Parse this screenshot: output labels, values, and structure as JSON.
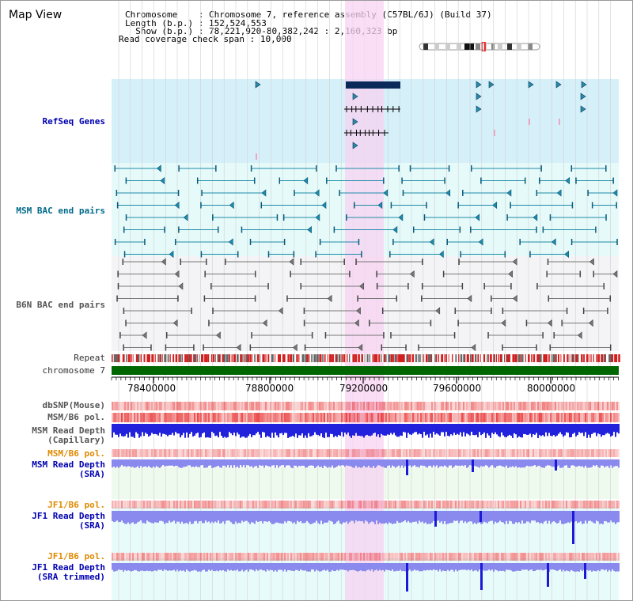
{
  "app": {
    "title": "Map View"
  },
  "header": {
    "chromosome_label": "Chromosome    ",
    "chromosome_value": "Chromosome 7, reference assembly (C57BL/6J) (Build 37)",
    "length_label": "Length (b.p.)",
    "length_value": "152,524,553",
    "show_label": "  Show (b.p.)",
    "show_value": "78,221,920-80,382,242 : 2,160,323 bp",
    "span_label": "Read coverage check span",
    "span_value": "10,000"
  },
  "tracks": {
    "refseq": "RefSeq Genes",
    "msm_bac": "MSM BAC end pairs",
    "b6n_bac": "B6N BAC end pairs",
    "repeat": "Repeat",
    "chromosome": "chromosome 7",
    "dbsnp": "dbSNP(Mouse)",
    "msm_b6_pol_1": "MSM/B6 pol.",
    "msm_depth_cap_1": "MSM Read Depth",
    "msm_depth_cap_2": "(Capillary)",
    "msm_b6_pol_2": "MSM/B6 pol.",
    "msm_depth_sra_1": "MSM Read Depth",
    "msm_depth_sra_2": "(SRA)",
    "jf1_b6_pol_1": "JF1/B6 pol.",
    "jf1_depth_sra_1": "JF1 Read Depth",
    "jf1_depth_sra_2": "(SRA)",
    "jf1_b6_pol_2": "JF1/B6 pol.",
    "jf1_depth_trim_1": "JF1 Read Depth",
    "jf1_depth_trim_2": "(SRA trimmed)"
  },
  "axis": {
    "ticks": [
      "78400000",
      "78800000",
      "79200000",
      "79600000",
      "80000000"
    ]
  },
  "colors": {
    "refseq_bg": "#d6f0fa",
    "msm_bac_bg": "#e6fafa",
    "b6n_bac_bg": "#f4f4f6",
    "highlight": "#f7d3f2",
    "chromosome": "#006600",
    "depth_blue": "#2222dd",
    "depth_light": "#8a8aee"
  }
}
